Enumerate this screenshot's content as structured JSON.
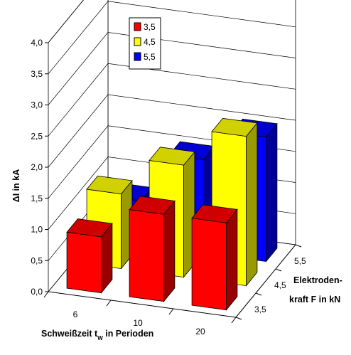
{
  "chart_data": {
    "type": "bar",
    "subtype": "3d-clustered-depth",
    "ylabel": "ΔI in kA",
    "xlabel_main": "Schweißzeit t",
    "xlabel_sub": "W",
    "xlabel_rest": " in Perioden",
    "zlabel_line1": "Elektroden-",
    "zlabel_line2": "kraft F in kN",
    "ylim": [
      0,
      4.0
    ],
    "yticks": [
      "0,0",
      "0,5",
      "1,0",
      "1,5",
      "2,0",
      "2,5",
      "3,0",
      "3,5",
      "4,0"
    ],
    "categories": [
      "6",
      "10",
      "20"
    ],
    "depth_labels": [
      "3,5",
      "4,5",
      "5,5"
    ],
    "grid": true,
    "legend_position": "top",
    "series": [
      {
        "name": "3,5",
        "color": "#ff0000",
        "values": [
          0.9,
          1.4,
          1.4
        ]
      },
      {
        "name": "4,5",
        "color": "#ffff00",
        "values": [
          1.2,
          1.8,
          2.4
        ]
      },
      {
        "name": "5,5",
        "color": "#0000ff",
        "values": [
          0.7,
          1.5,
          2.0
        ]
      }
    ]
  }
}
